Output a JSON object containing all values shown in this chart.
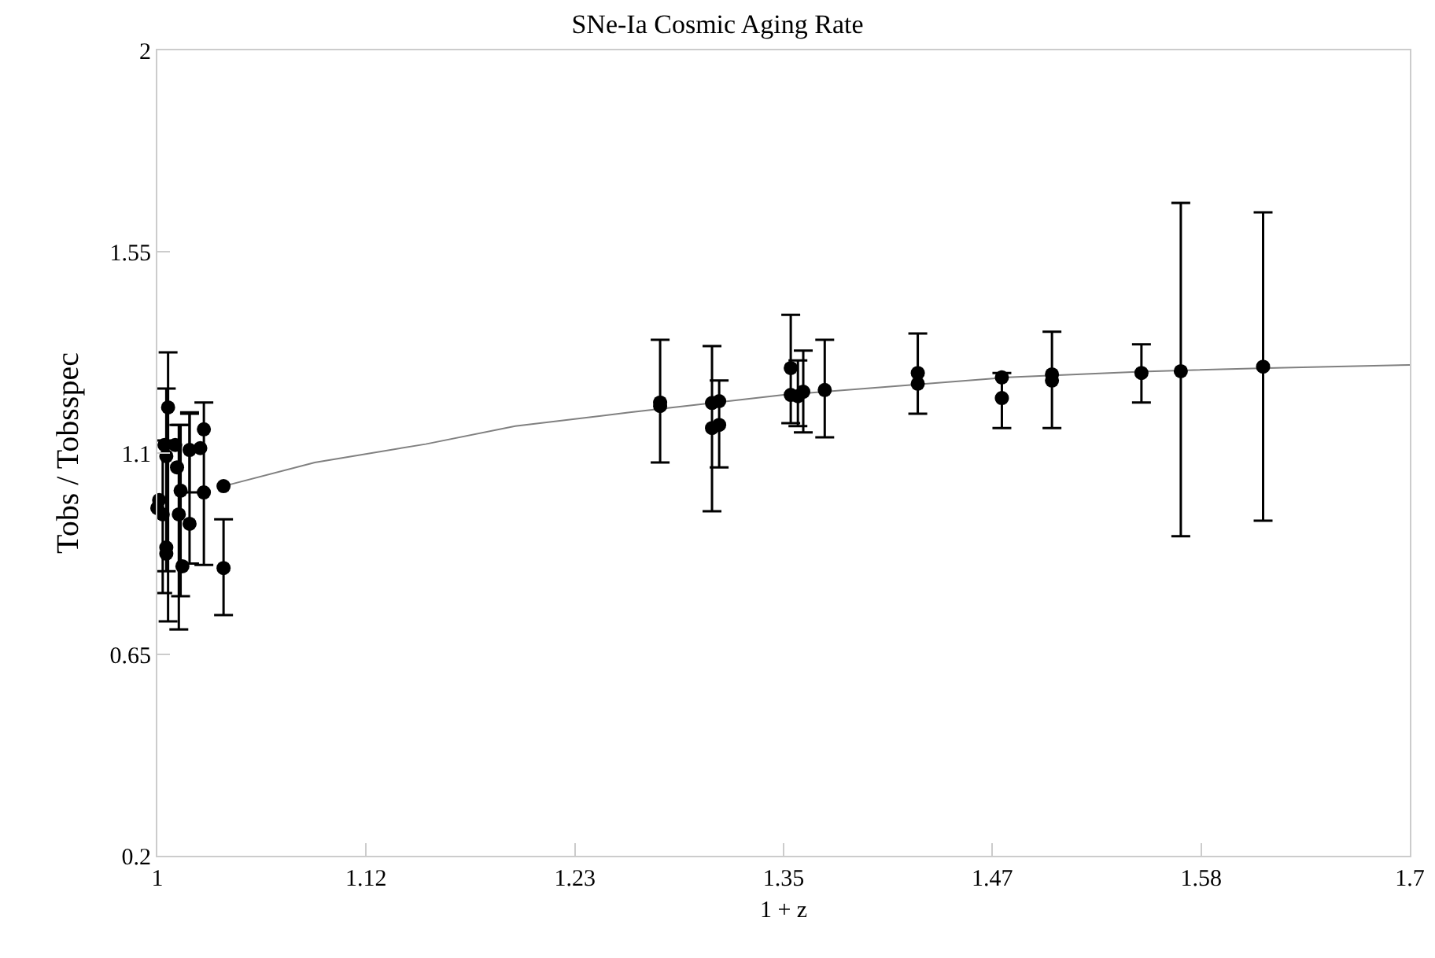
{
  "chart_data": {
    "type": "scatter",
    "title": "SNe-Ia Cosmic Aging Rate",
    "xlabel": "1 + z",
    "ylabel": "Tobs / Tobsspec",
    "xlim": [
      1,
      1.7
    ],
    "xticks": [
      1,
      {
        "value": 1.11667,
        "label": "1.12"
      },
      {
        "value": 1.23333,
        "label": "1.23"
      },
      1.35,
      {
        "value": 1.46667,
        "label": "1.47"
      },
      {
        "value": 1.58333,
        "label": "1.58"
      },
      1.7
    ],
    "ylim": [
      0.2,
      2
    ],
    "yticks": [
      0.2,
      0.65,
      1.1,
      1.55,
      2
    ],
    "grid": false,
    "legend": false,
    "series": [
      {
        "color": "#000000",
        "marker": "circle",
        "x": [
          1.006,
          1.004,
          1.005,
          1.003,
          1.005,
          1.005,
          1.01,
          1.011,
          1.013,
          1.012,
          1.014,
          1.018,
          1.024,
          1.026,
          1.026,
          1.037,
          1.037,
          1.018,
          1.0,
          1.001,
          1.281,
          1.281,
          1.31,
          1.314,
          1.31,
          1.314,
          1.354,
          1.354,
          1.361,
          1.358,
          1.373,
          1.425,
          1.425,
          1.472,
          1.472,
          1.5,
          1.5,
          1.55,
          1.572,
          1.618
        ],
        "values": [
          1.202,
          1.118,
          1.093,
          0.963,
          0.889,
          0.875,
          1.118,
          1.068,
          1.016,
          0.963,
          0.847,
          0.942,
          1.111,
          1.153,
          1.012,
          0.843,
          1.026,
          1.107,
          0.977,
          0.995,
          1.213,
          1.205,
          1.212,
          1.216,
          1.156,
          1.163,
          1.29,
          1.23,
          1.237,
          1.227,
          1.241,
          1.279,
          1.255,
          1.269,
          1.223,
          1.276,
          1.262,
          1.279,
          1.283,
          1.293
        ],
        "errors": [
          [
            0.724,
            1.325
          ],
          null,
          [
            0.836,
            1.244
          ],
          [
            0.787,
            1.128
          ],
          null,
          null,
          null,
          null,
          [
            0.78,
            1.163
          ],
          [
            0.706,
            1.163
          ],
          null,
          [
            0.853,
            1.191
          ],
          null,
          null,
          [
            0.85,
            1.213
          ],
          [
            0.738,
            0.952
          ],
          null,
          [
            1.012,
            1.188
          ],
          null,
          null,
          [
            1.079,
            1.353
          ],
          null,
          [
            0.97,
            1.339
          ],
          null,
          null,
          [
            1.068,
            1.262
          ],
          [
            1.167,
            1.409
          ],
          null,
          [
            1.146,
            1.329
          ],
          [
            1.16,
            1.307
          ],
          [
            1.135,
            1.353
          ],
          [
            1.188,
            1.367
          ],
          null,
          null,
          [
            1.156,
            1.279
          ],
          [
            1.156,
            1.371
          ],
          null,
          [
            1.213,
            1.343
          ],
          [
            0.914,
            1.659
          ],
          [
            0.949,
            1.638
          ]
        ]
      },
      {
        "type": "line",
        "color": "#808080",
        "marker": "none",
        "line_style": "solid",
        "x": [
          1.037,
          1.088,
          1.15,
          1.2,
          1.264,
          1.35,
          1.475,
          1.55,
          1.62,
          1.7
        ],
        "values": [
          1.026,
          1.079,
          1.12,
          1.16,
          1.191,
          1.23,
          1.269,
          1.282,
          1.29,
          1.297
        ]
      }
    ]
  }
}
